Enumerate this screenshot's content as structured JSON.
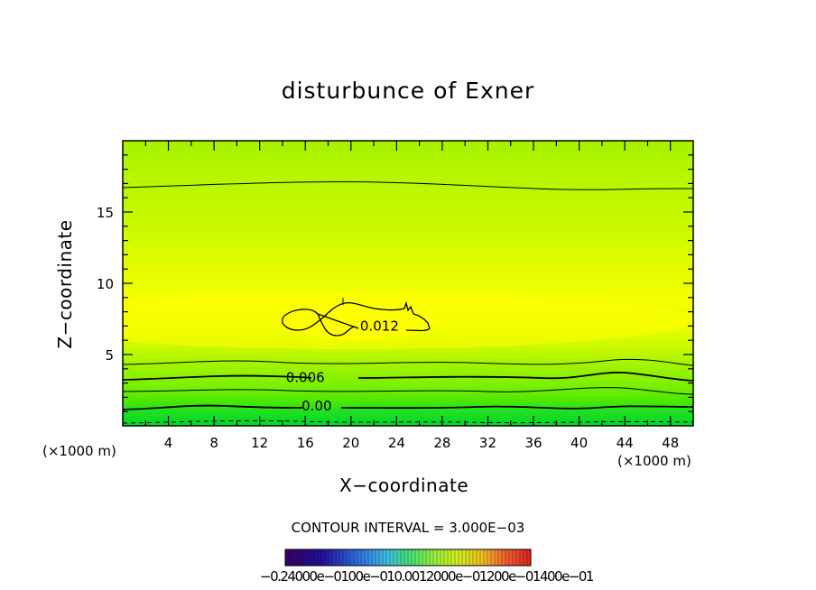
{
  "chart_data": {
    "type": "contour",
    "title": "disturbunce of Exner",
    "xlabel": "X−coordinate",
    "ylabel": "Z−coordinate",
    "x_unit_left": "(×1000 m)",
    "x_unit_right": "(×1000 m)",
    "xlim": [
      0,
      50
    ],
    "ylim": [
      0,
      20
    ],
    "x_ticks": [
      4,
      8,
      12,
      16,
      20,
      24,
      28,
      32,
      36,
      40,
      44,
      48
    ],
    "y_ticks": [
      5,
      10,
      15
    ],
    "contour_interval_text": "CONTOUR INTERVAL = 3.000E−03",
    "contour_interval": 0.003,
    "contour_labels": [
      {
        "text": "0.012",
        "x": 22.5,
        "y": 7.0
      },
      {
        "text": "0.006",
        "x": 16.0,
        "y": 3.4
      },
      {
        "text": "0.00",
        "x": 17.0,
        "y": 1.4
      }
    ],
    "colorbar_text": "−0.24000e−0100e−010.0012000e−01200e−01400e−01",
    "colors": {
      "background": "#ffffff",
      "high": "#ffff00",
      "mid": "#c8ff00",
      "low": "#00dd33"
    }
  }
}
